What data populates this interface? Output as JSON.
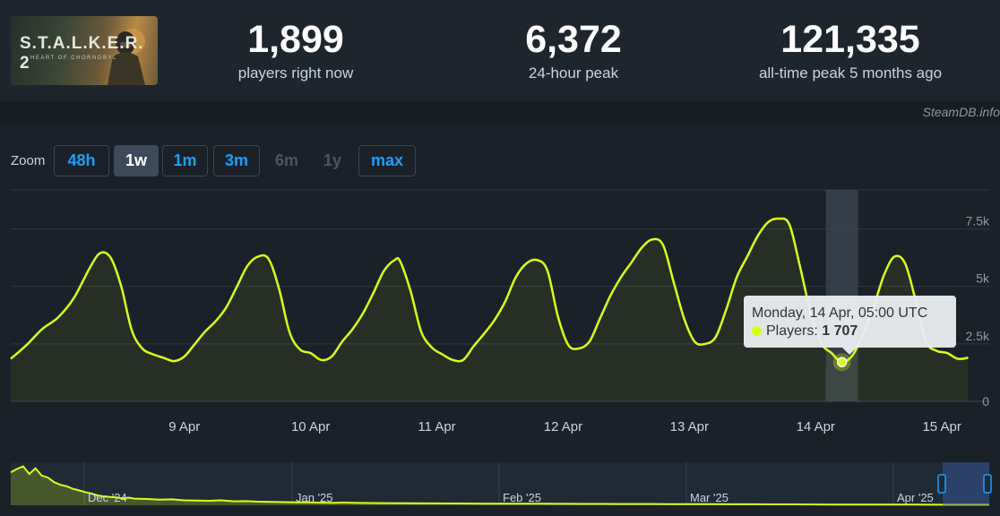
{
  "game": {
    "logo_text": "S.T.A.L.K.E.R. 2",
    "logo_sub": "HEART OF CHORNOBYL"
  },
  "stats": [
    {
      "value": "1,899",
      "label": "players right now"
    },
    {
      "value": "6,372",
      "label": "24-hour peak"
    },
    {
      "value": "121,335",
      "label": "all-time peak 5 months ago"
    }
  ],
  "credit": "SteamDB.info",
  "zoom": {
    "label": "Zoom",
    "buttons": [
      {
        "label": "48h",
        "state": "normal"
      },
      {
        "label": "1w",
        "state": "active"
      },
      {
        "label": "1m",
        "state": "normal"
      },
      {
        "label": "3m",
        "state": "normal"
      },
      {
        "label": "6m",
        "state": "disabled"
      },
      {
        "label": "1y",
        "state": "disabled"
      },
      {
        "label": "max",
        "state": "normal"
      }
    ]
  },
  "tooltip": {
    "date": "Monday, 14 Apr, 05:00 UTC",
    "series_label": "Players:",
    "value": "1 707"
  },
  "colors": {
    "line": "#d7ff18",
    "background": "#1b2128",
    "grid": "#2e3844",
    "accent": "#1a9fff"
  },
  "chart_data": {
    "type": "line",
    "series_name": "Players",
    "x_unit": "hours since 8 Apr 00:00 UTC",
    "xlim": [
      -9,
      177
    ],
    "ylim": [
      0,
      9200
    ],
    "y_ticks": [
      0,
      2500,
      5000,
      7500
    ],
    "y_tick_labels": [
      "0",
      "2.5k",
      "5k",
      "7.5k"
    ],
    "x_ticks": [
      24,
      48,
      72,
      96,
      120,
      144,
      168
    ],
    "x_tick_labels": [
      "9 Apr",
      "10 Apr",
      "11 Apr",
      "12 Apr",
      "13 Apr",
      "14 Apr",
      "15 Apr"
    ],
    "grid": true,
    "highlight_hour": 149,
    "points": [
      [
        -9,
        1850
      ],
      [
        -6,
        2450
      ],
      [
        -3,
        3150
      ],
      [
        0,
        3650
      ],
      [
        3,
        4500
      ],
      [
        6,
        5800
      ],
      [
        8,
        6450
      ],
      [
        10,
        6250
      ],
      [
        12,
        5000
      ],
      [
        14,
        3100
      ],
      [
        16,
        2300
      ],
      [
        18,
        2050
      ],
      [
        20,
        1900
      ],
      [
        22,
        1750
      ],
      [
        24,
        1950
      ],
      [
        26,
        2500
      ],
      [
        28,
        3050
      ],
      [
        30,
        3500
      ],
      [
        32,
        4100
      ],
      [
        34,
        5000
      ],
      [
        36,
        5900
      ],
      [
        38,
        6300
      ],
      [
        40,
        6200
      ],
      [
        42,
        4900
      ],
      [
        44,
        3000
      ],
      [
        46,
        2250
      ],
      [
        48,
        2100
      ],
      [
        50,
        1800
      ],
      [
        52,
        1950
      ],
      [
        54,
        2600
      ],
      [
        56,
        3150
      ],
      [
        58,
        3850
      ],
      [
        60,
        4750
      ],
      [
        62,
        5700
      ],
      [
        64,
        6150
      ],
      [
        65,
        6100
      ],
      [
        67,
        4800
      ],
      [
        69,
        3050
      ],
      [
        71,
        2350
      ],
      [
        73,
        2050
      ],
      [
        75,
        1800
      ],
      [
        77,
        1800
      ],
      [
        79,
        2400
      ],
      [
        81,
        2950
      ],
      [
        83,
        3550
      ],
      [
        85,
        4350
      ],
      [
        87,
        5400
      ],
      [
        89,
        6000
      ],
      [
        91,
        6150
      ],
      [
        93,
        5700
      ],
      [
        95,
        3700
      ],
      [
        97,
        2450
      ],
      [
        99,
        2300
      ],
      [
        101,
        2600
      ],
      [
        103,
        3600
      ],
      [
        105,
        4600
      ],
      [
        107,
        5400
      ],
      [
        109,
        6050
      ],
      [
        111,
        6700
      ],
      [
        113,
        7050
      ],
      [
        115,
        6800
      ],
      [
        117,
        5200
      ],
      [
        119,
        3600
      ],
      [
        121,
        2600
      ],
      [
        123,
        2500
      ],
      [
        125,
        2800
      ],
      [
        127,
        4000
      ],
      [
        129,
        5400
      ],
      [
        131,
        6300
      ],
      [
        133,
        7200
      ],
      [
        135,
        7800
      ],
      [
        137,
        7950
      ],
      [
        139,
        7700
      ],
      [
        141,
        5900
      ],
      [
        143,
        3900
      ],
      [
        145,
        2550
      ],
      [
        147,
        2100
      ],
      [
        149,
        1707
      ],
      [
        151,
        2000
      ],
      [
        153,
        2900
      ],
      [
        155,
        4100
      ],
      [
        157,
        5500
      ],
      [
        159,
        6300
      ],
      [
        161,
        6000
      ],
      [
        163,
        4400
      ],
      [
        165,
        2600
      ],
      [
        167,
        2200
      ],
      [
        169,
        2100
      ],
      [
        171,
        1850
      ],
      [
        173,
        1900
      ]
    ],
    "navigator": {
      "labels": [
        "Dec '24",
        "Jan '25",
        "Feb '25",
        "Mar '25",
        "Apr '25"
      ],
      "ylim": [
        0,
        125000
      ],
      "points": [
        [
          0,
          100000
        ],
        [
          1,
          110000
        ],
        [
          2,
          118000
        ],
        [
          3,
          95000
        ],
        [
          4,
          112000
        ],
        [
          5,
          90000
        ],
        [
          6,
          84000
        ],
        [
          7,
          70000
        ],
        [
          8,
          62000
        ],
        [
          9,
          58000
        ],
        [
          10,
          50000
        ],
        [
          11,
          45000
        ],
        [
          12,
          40000
        ],
        [
          13,
          36000
        ],
        [
          14,
          30000
        ],
        [
          15,
          27000
        ],
        [
          16,
          25000
        ],
        [
          17,
          24000
        ],
        [
          18,
          21000
        ],
        [
          19,
          23000
        ],
        [
          20,
          20000
        ],
        [
          22,
          19000
        ],
        [
          24,
          17000
        ],
        [
          26,
          18000
        ],
        [
          28,
          15000
        ],
        [
          30,
          14000
        ],
        [
          32,
          13500
        ],
        [
          34,
          15000
        ],
        [
          36,
          12000
        ],
        [
          38,
          12500
        ],
        [
          40,
          11000
        ],
        [
          42,
          10000
        ],
        [
          44,
          9500
        ],
        [
          46,
          9000
        ],
        [
          48,
          8800
        ],
        [
          50,
          8000
        ],
        [
          52,
          7500
        ],
        [
          54,
          8200
        ],
        [
          56,
          7000
        ],
        [
          58,
          6800
        ],
        [
          60,
          6500
        ],
        [
          62,
          6200
        ],
        [
          64,
          6000
        ],
        [
          66,
          5800
        ],
        [
          68,
          5600
        ],
        [
          70,
          5400
        ],
        [
          72,
          5500
        ],
        [
          74,
          5200
        ],
        [
          76,
          5000
        ],
        [
          78,
          4800
        ],
        [
          80,
          4900
        ],
        [
          82,
          4700
        ],
        [
          84,
          4600
        ],
        [
          86,
          4500
        ],
        [
          88,
          4400
        ],
        [
          90,
          4300
        ],
        [
          92,
          4200
        ],
        [
          94,
          4100
        ],
        [
          96,
          4000
        ],
        [
          98,
          3900
        ],
        [
          100,
          3800
        ],
        [
          102,
          3700
        ],
        [
          104,
          3900
        ],
        [
          106,
          3600
        ],
        [
          108,
          3500
        ],
        [
          110,
          3400
        ],
        [
          112,
          3300
        ],
        [
          114,
          3200
        ],
        [
          116,
          3100
        ],
        [
          118,
          3000
        ],
        [
          120,
          2900
        ],
        [
          122,
          2800
        ],
        [
          124,
          2700
        ],
        [
          126,
          2600
        ],
        [
          128,
          2500
        ],
        [
          130,
          2400
        ],
        [
          132,
          2300
        ],
        [
          134,
          2200
        ],
        [
          136,
          2100
        ],
        [
          138,
          2000
        ],
        [
          140,
          1950
        ],
        [
          142,
          1900
        ],
        [
          144,
          1800
        ],
        [
          146,
          1850
        ],
        [
          148,
          1700
        ],
        [
          150,
          1750
        ],
        [
          152,
          1650
        ],
        [
          154,
          1600
        ],
        [
          156,
          1550
        ],
        [
          158,
          1500
        ]
      ]
    }
  }
}
